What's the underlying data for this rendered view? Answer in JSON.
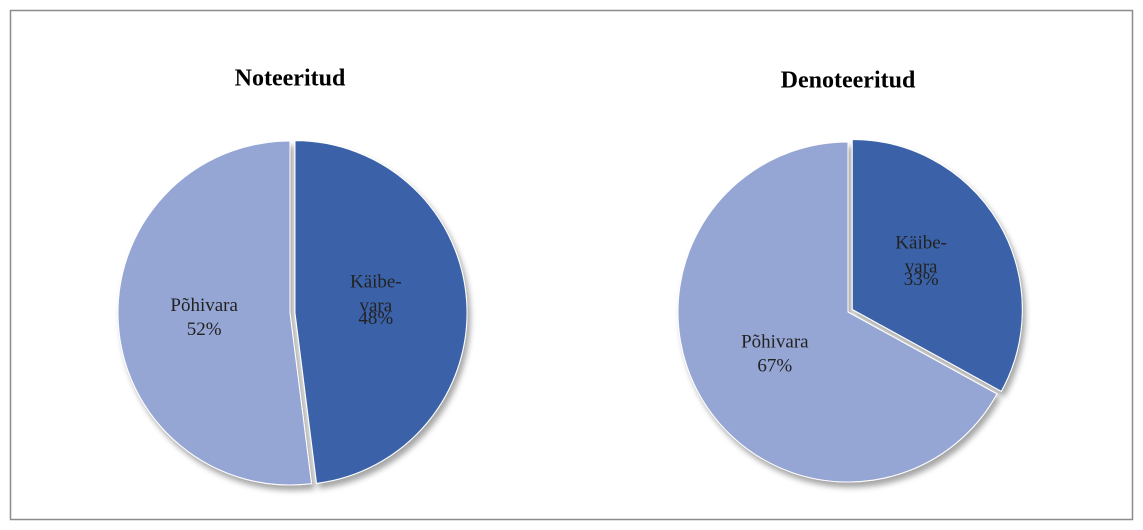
{
  "chart_data": [
    {
      "type": "pie",
      "title": "Noteeritud",
      "categories": [
        "Käibe-\nvara",
        "Põhivara"
      ],
      "values": [
        48,
        52
      ],
      "value_labels": [
        "48%",
        "52%"
      ],
      "colors": [
        "#3a62a8",
        "#95a6d4"
      ]
    },
    {
      "type": "pie",
      "title": "Denoteeritud",
      "categories": [
        "Käibe-\nvara",
        "Põhivara"
      ],
      "values": [
        33,
        67
      ],
      "value_labels": [
        "33%",
        "67%"
      ],
      "colors": [
        "#3a62a8",
        "#95a6d4"
      ]
    }
  ]
}
